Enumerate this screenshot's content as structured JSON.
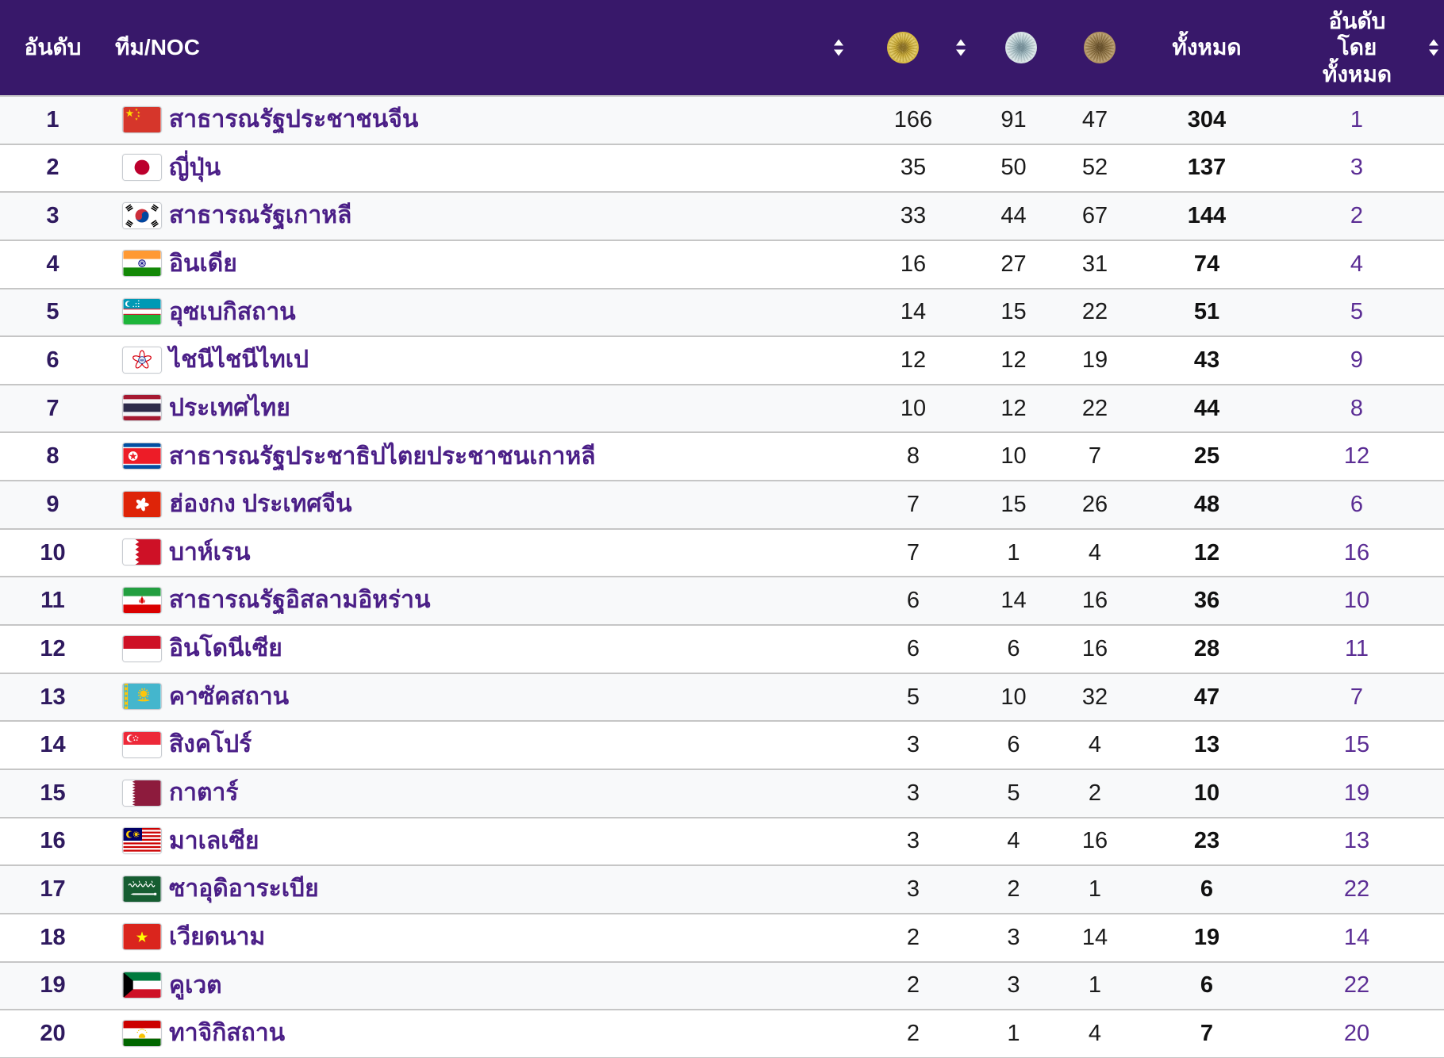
{
  "header": {
    "rank": "อันดับ",
    "team": "ทีม/NOC",
    "total": "ทั้งหมด",
    "rank_by_total_lines": [
      "อันดับ",
      "โดย",
      "ทั้งหมด"
    ]
  },
  "icons": {
    "gold": "gold-medal-icon",
    "silver": "silver-medal-icon",
    "bronze": "bronze-medal-icon",
    "sort": "sort-icon"
  },
  "colors": {
    "header_bg": "#38186a",
    "header_text": "#ffffff",
    "row_odd_bg": "#f8f9fa",
    "row_even_bg": "#ffffff",
    "separator": "#c6c6c6",
    "rank_text": "#2f1a5f",
    "country_link": "#4b1f87",
    "rank_by_total_text": "#5b2d94",
    "gold_medal": "#d6b73e",
    "silver_medal": "#c2d0d4",
    "bronze_medal": "#a27f4e"
  },
  "rows": [
    {
      "rank": "1",
      "flag": "china",
      "country": "สาธารณรัฐประชาชนจีน",
      "gold": "166",
      "silver": "91",
      "bronze": "47",
      "total": "304",
      "rank_by_total": "1"
    },
    {
      "rank": "2",
      "flag": "japan",
      "country": "ญี่ปุ่น",
      "gold": "35",
      "silver": "50",
      "bronze": "52",
      "total": "137",
      "rank_by_total": "3"
    },
    {
      "rank": "3",
      "flag": "south-korea",
      "country": "สาธารณรัฐเกาหลี",
      "gold": "33",
      "silver": "44",
      "bronze": "67",
      "total": "144",
      "rank_by_total": "2"
    },
    {
      "rank": "4",
      "flag": "india",
      "country": "อินเดีย",
      "gold": "16",
      "silver": "27",
      "bronze": "31",
      "total": "74",
      "rank_by_total": "4"
    },
    {
      "rank": "5",
      "flag": "uzbekistan",
      "country": "อุซเบกิสถาน",
      "gold": "14",
      "silver": "15",
      "bronze": "22",
      "total": "51",
      "rank_by_total": "5"
    },
    {
      "rank": "6",
      "flag": "chinese-taipei",
      "country": "ไชนีไชนีไทเป",
      "gold": "12",
      "silver": "12",
      "bronze": "19",
      "total": "43",
      "rank_by_total": "9"
    },
    {
      "rank": "7",
      "flag": "thailand",
      "country": "ประเทศไทย",
      "gold": "10",
      "silver": "12",
      "bronze": "22",
      "total": "44",
      "rank_by_total": "8"
    },
    {
      "rank": "8",
      "flag": "north-korea",
      "country": "สาธารณรัฐประชาธิปไตยประชาชนเกาหลี",
      "gold": "8",
      "silver": "10",
      "bronze": "7",
      "total": "25",
      "rank_by_total": "12"
    },
    {
      "rank": "9",
      "flag": "hong-kong",
      "country": "ฮ่องกง ประเทศจีน",
      "gold": "7",
      "silver": "15",
      "bronze": "26",
      "total": "48",
      "rank_by_total": "6"
    },
    {
      "rank": "10",
      "flag": "bahrain",
      "country": "บาห์เรน",
      "gold": "7",
      "silver": "1",
      "bronze": "4",
      "total": "12",
      "rank_by_total": "16"
    },
    {
      "rank": "11",
      "flag": "iran",
      "country": "สาธารณรัฐอิสลามอิหร่าน",
      "gold": "6",
      "silver": "14",
      "bronze": "16",
      "total": "36",
      "rank_by_total": "10"
    },
    {
      "rank": "12",
      "flag": "indonesia",
      "country": "อินโดนีเซีย",
      "gold": "6",
      "silver": "6",
      "bronze": "16",
      "total": "28",
      "rank_by_total": "11"
    },
    {
      "rank": "13",
      "flag": "kazakhstan",
      "country": "คาซัคสถาน",
      "gold": "5",
      "silver": "10",
      "bronze": "32",
      "total": "47",
      "rank_by_total": "7"
    },
    {
      "rank": "14",
      "flag": "singapore",
      "country": "สิงคโปร์",
      "gold": "3",
      "silver": "6",
      "bronze": "4",
      "total": "13",
      "rank_by_total": "15"
    },
    {
      "rank": "15",
      "flag": "qatar",
      "country": "กาตาร์",
      "gold": "3",
      "silver": "5",
      "bronze": "2",
      "total": "10",
      "rank_by_total": "19"
    },
    {
      "rank": "16",
      "flag": "malaysia",
      "country": "มาเลเซีย",
      "gold": "3",
      "silver": "4",
      "bronze": "16",
      "total": "23",
      "rank_by_total": "13"
    },
    {
      "rank": "17",
      "flag": "saudi-arabia",
      "country": "ซาอุดิอาระเบีย",
      "gold": "3",
      "silver": "2",
      "bronze": "1",
      "total": "6",
      "rank_by_total": "22"
    },
    {
      "rank": "18",
      "flag": "vietnam",
      "country": "เวียดนาม",
      "gold": "2",
      "silver": "3",
      "bronze": "14",
      "total": "19",
      "rank_by_total": "14"
    },
    {
      "rank": "19",
      "flag": "kuwait",
      "country": "คูเวต",
      "gold": "2",
      "silver": "3",
      "bronze": "1",
      "total": "6",
      "rank_by_total": "22"
    },
    {
      "rank": "20",
      "flag": "tajikistan",
      "country": "ทาจิกิสถาน",
      "gold": "2",
      "silver": "1",
      "bronze": "4",
      "total": "7",
      "rank_by_total": "20"
    }
  ]
}
